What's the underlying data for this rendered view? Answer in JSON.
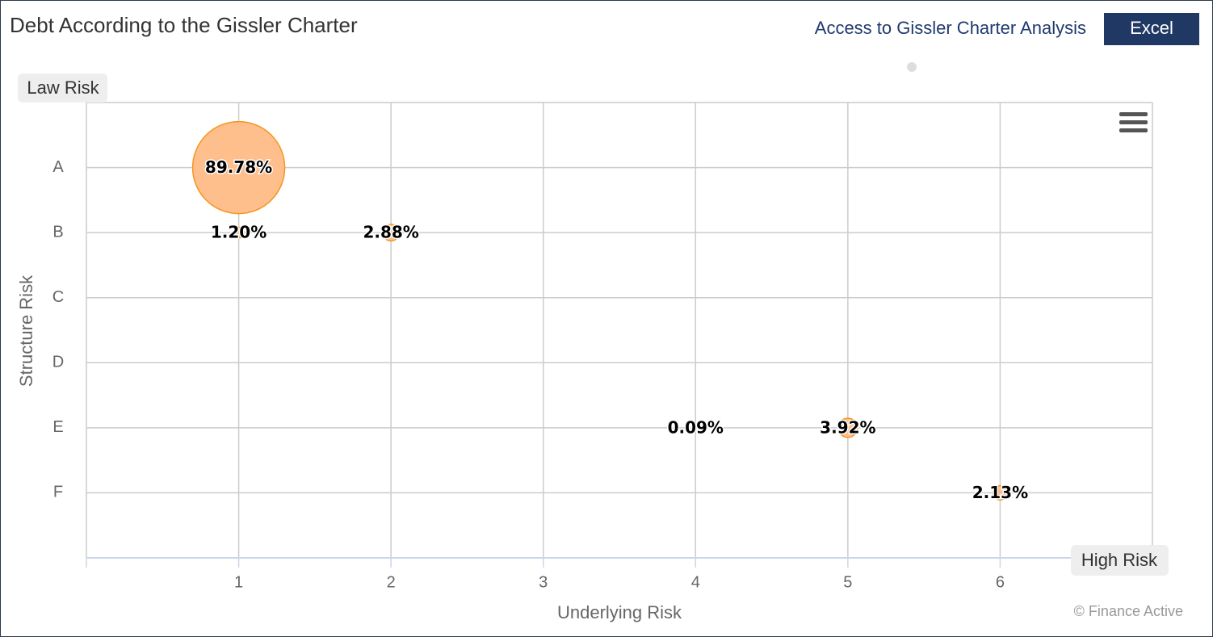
{
  "header": {
    "link": "Access to Gissler Charter Analysis",
    "button": "Excel"
  },
  "chart_data": {
    "type": "bubble",
    "title": "Debt According to the Gissler Charter",
    "x_label": "Underlying Risk",
    "y_label": "Structure Risk",
    "corner_top_left": "Law Risk",
    "corner_bottom_right": "High Risk",
    "credits": "© Finance Active",
    "categories": [
      "A",
      "B",
      "C",
      "D",
      "E",
      "F"
    ],
    "x": [
      1,
      1,
      2,
      4,
      5,
      6
    ],
    "y": [
      "A",
      "B",
      "B",
      "E",
      "E",
      "F"
    ],
    "values": [
      89.78,
      1.2,
      2.88,
      0.09,
      3.92,
      2.13
    ],
    "value_labels": [
      "89.78%",
      "1.20%",
      "2.88%",
      "0.09%",
      "3.92%",
      "2.13%"
    ],
    "color": "#ffbf8c",
    "border_color": "#f7941d",
    "xlim": [
      0,
      7
    ],
    "xticks": [
      1,
      2,
      3,
      4,
      5,
      6
    ],
    "grid": true
  }
}
